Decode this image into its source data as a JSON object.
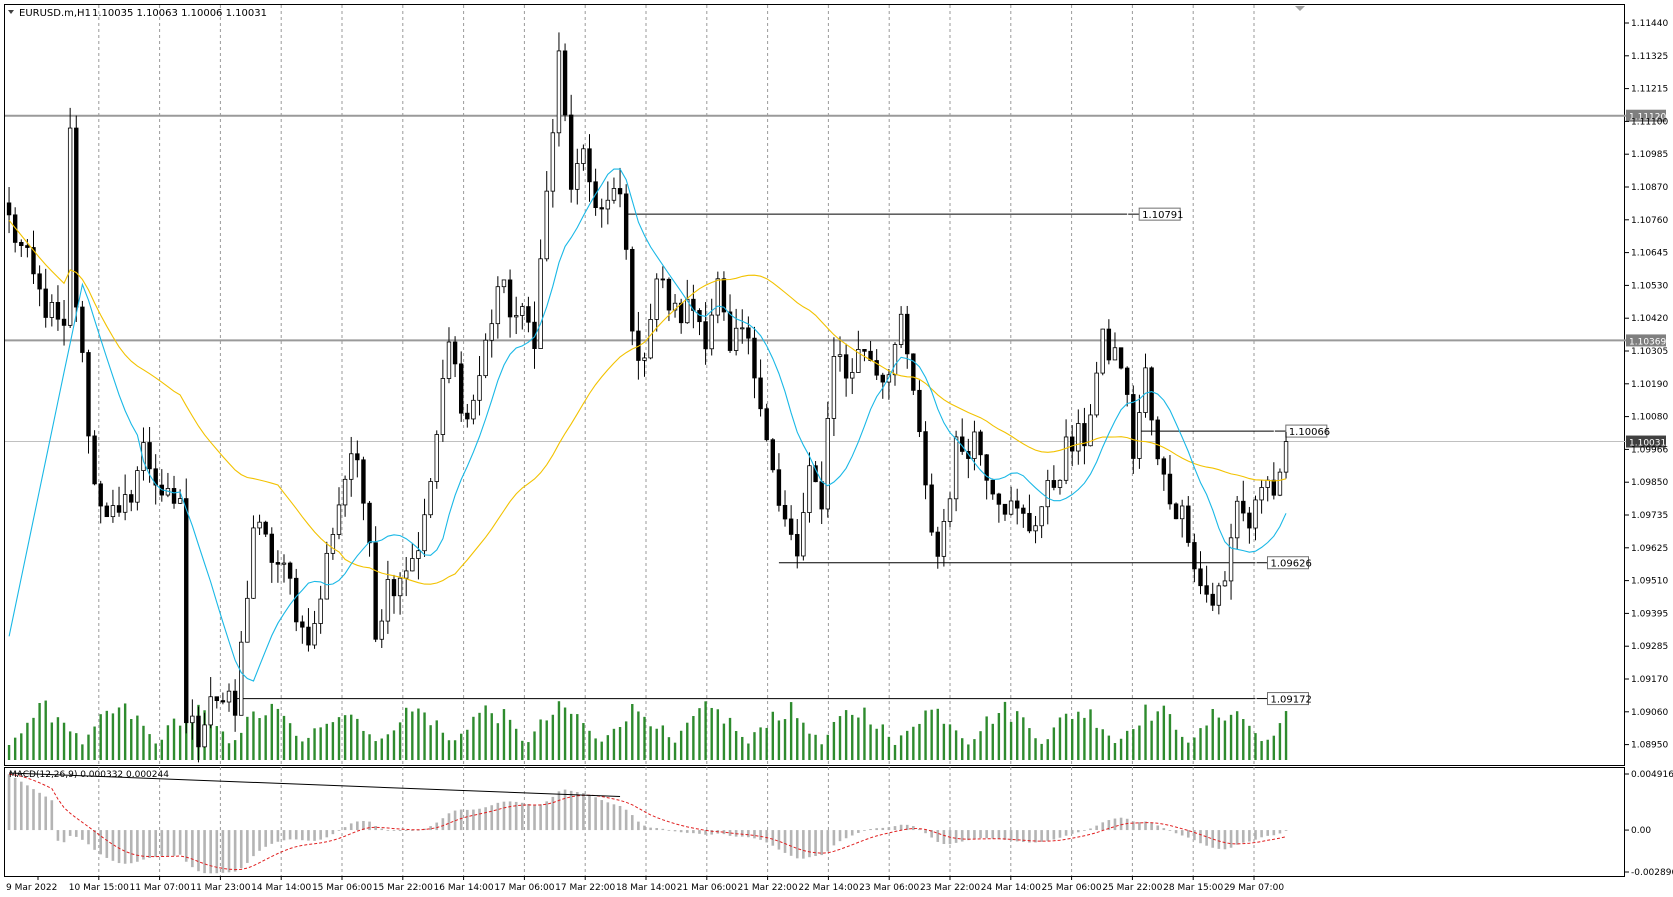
{
  "header": {
    "symbol": "EURUSD.m,H1",
    "ohlc": "1.10035 1.10063 1.10006 1.10031"
  },
  "macd_label": "MACD(12,26,9) 0.000332 0.000244",
  "price_scale": [
    "1.11440",
    "1.11325",
    "1.11215",
    "1.11100",
    "1.10985",
    "1.10870",
    "1.10760",
    "1.10645",
    "1.10530",
    "1.10420",
    "1.10305",
    "1.10190",
    "1.10080",
    "1.09966",
    "1.09850",
    "1.09735",
    "1.09625",
    "1.09510",
    "1.09395",
    "1.09285",
    "1.09170",
    "1.09060",
    "1.08950"
  ],
  "price_range": [
    1.0895,
    1.1149
  ],
  "macd_scale": [
    "0.004916",
    "0.00",
    "-0.002896"
  ],
  "macd_range": [
    -0.0037,
    0.005
  ],
  "time_labels": [
    "9 Mar 2022",
    "10 Mar 15:00",
    "11 Mar 07:00",
    "11 Mar 23:00",
    "14 Mar 14:00",
    "15 Mar 06:00",
    "15 Mar 22:00",
    "16 Mar 14:00",
    "17 Mar 06:00",
    "17 Mar 22:00",
    "18 Mar 14:00",
    "21 Mar 06:00",
    "21 Mar 22:00",
    "22 Mar 14:00",
    "23 Mar 06:00",
    "23 Mar 22:00",
    "24 Mar 14:00",
    "25 Mar 06:00",
    "25 Mar 22:00",
    "28 Mar 15:00",
    "29 Mar 07:00"
  ],
  "levels": {
    "gray_lines": [
      {
        "price": 1.1112,
        "label": "1.11120"
      },
      {
        "price": 1.10369,
        "label": "1.10369"
      }
    ],
    "current_price": {
      "price": 1.10031,
      "label": "1.10031"
    },
    "black_lines": [
      {
        "price": 1.10791,
        "label": "1.10791",
        "start_bar": 101,
        "end_bar": 183
      },
      {
        "price": 1.10066,
        "label": "1.10066",
        "start_bar": 185,
        "end_bar": 207
      },
      {
        "price": 1.09626,
        "label": "1.09626",
        "start_bar": 126,
        "end_bar": 204
      },
      {
        "price": 1.09172,
        "label": "1.09172",
        "start_bar": 37,
        "end_bar": 204
      }
    ]
  },
  "macd_trendline": {
    "start_bar": 0,
    "start_value": 0.0046,
    "end_bar": 100,
    "end_value": 0.0027
  },
  "colors": {
    "bullish_bear_candle": "#000000",
    "volume": "#2e8b2e",
    "ma_fast": "#1ab8e6",
    "ma_slow": "#f2c200",
    "macd_hist": "#b4b4b4",
    "macd_signal": "#e02020",
    "grid": "#9a9a9a",
    "level_gray": "#9a9a9a",
    "highlight_label_bg": "#7f7f7f"
  },
  "chart_data": {
    "type": "candlestick",
    "symbol": "EURUSD.m",
    "timeframe": "H1",
    "bar_count": 210,
    "anchors": [
      [
        0,
        1.1077
      ],
      [
        5,
        1.1052
      ],
      [
        9,
        1.1038
      ],
      [
        10,
        1.1105
      ],
      [
        11,
        1.105
      ],
      [
        14,
        1.0988
      ],
      [
        18,
        1.0975
      ],
      [
        22,
        1.1
      ],
      [
        27,
        1.0978
      ],
      [
        28,
        1.0985
      ],
      [
        29,
        1.091
      ],
      [
        31,
        1.0905
      ],
      [
        33,
        1.092
      ],
      [
        37,
        1.0912
      ],
      [
        40,
        1.0975
      ],
      [
        43,
        1.0965
      ],
      [
        46,
        1.0955
      ],
      [
        48,
        1.094
      ],
      [
        50,
        1.094
      ],
      [
        53,
        1.0975
      ],
      [
        56,
        1.1
      ],
      [
        59,
        1.0975
      ],
      [
        60,
        1.094
      ],
      [
        62,
        1.0955
      ],
      [
        64,
        1.096
      ],
      [
        66,
        1.0965
      ],
      [
        68,
        1.0975
      ],
      [
        72,
        1.1035
      ],
      [
        75,
        1.101
      ],
      [
        77,
        1.1025
      ],
      [
        80,
        1.1055
      ],
      [
        83,
        1.1045
      ],
      [
        86,
        1.104
      ],
      [
        88,
        1.1085
      ],
      [
        90,
        1.113
      ],
      [
        92,
        1.109
      ],
      [
        94,
        1.1095
      ],
      [
        97,
        1.108
      ],
      [
        100,
        1.1085
      ],
      [
        103,
        1.1025
      ],
      [
        106,
        1.1058
      ],
      [
        109,
        1.1045
      ],
      [
        112,
        1.1048
      ],
      [
        114,
        1.104
      ],
      [
        116,
        1.1055
      ],
      [
        118,
        1.103
      ],
      [
        120,
        1.104
      ],
      [
        123,
        1.102
      ],
      [
        126,
        1.098
      ],
      [
        129,
        1.0965
      ],
      [
        131,
        1.099
      ],
      [
        133,
        1.0985
      ],
      [
        135,
        1.1035
      ],
      [
        137,
        1.1025
      ],
      [
        140,
        1.1035
      ],
      [
        143,
        1.1025
      ],
      [
        146,
        1.104
      ],
      [
        148,
        1.102
      ],
      [
        150,
        1.0985
      ],
      [
        152,
        1.0965
      ],
      [
        155,
        1.1
      ],
      [
        158,
        1.1005
      ],
      [
        161,
        1.099
      ],
      [
        164,
        1.098
      ],
      [
        167,
        1.0975
      ],
      [
        170,
        1.0985
      ],
      [
        173,
        1.1
      ],
      [
        176,
        1.1005
      ],
      [
        179,
        1.1035
      ],
      [
        182,
        1.103
      ],
      [
        184,
        1.1
      ],
      [
        186,
        1.1025
      ],
      [
        188,
        1.0995
      ],
      [
        190,
        1.0985
      ],
      [
        193,
        1.0975
      ],
      [
        195,
        1.0955
      ],
      [
        197,
        1.095
      ],
      [
        199,
        1.0955
      ],
      [
        201,
        1.0985
      ],
      [
        203,
        1.0975
      ],
      [
        205,
        1.099
      ],
      [
        207,
        1.098
      ],
      [
        209,
        1.1003
      ]
    ],
    "volume_range": [
      0,
      100
    ],
    "note_levels": [
      1.1112,
      1.10369,
      1.10791,
      1.10066,
      1.09626,
      1.09172
    ]
  }
}
